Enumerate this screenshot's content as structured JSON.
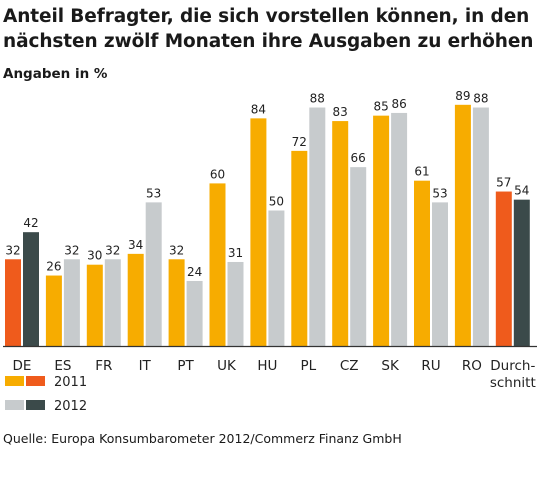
{
  "chart_data": {
    "type": "bar",
    "title": "Anteil Befragter, die sich vorstellen können, in den nächsten zwölf Monaten ihre Ausgaben zu erhöhen",
    "subtitle": "Angaben in %",
    "categories": [
      "DE",
      "ES",
      "FR",
      "IT",
      "PT",
      "UK",
      "HU",
      "PL",
      "CZ",
      "SK",
      "RU",
      "RO",
      "Durch-schnitt"
    ],
    "category_lines": [
      [
        "DE"
      ],
      [
        "ES"
      ],
      [
        "FR"
      ],
      [
        "IT"
      ],
      [
        "PT"
      ],
      [
        "UK"
      ],
      [
        "HU"
      ],
      [
        "PL"
      ],
      [
        "CZ"
      ],
      [
        "SK"
      ],
      [
        "RU"
      ],
      [
        "RO"
      ],
      [
        "Durch-",
        "schnitt"
      ]
    ],
    "series": [
      {
        "name": "2011",
        "values": [
          32,
          26,
          30,
          34,
          32,
          60,
          84,
          72,
          83,
          85,
          61,
          89,
          57
        ]
      },
      {
        "name": "2012",
        "values": [
          42,
          32,
          32,
          53,
          24,
          31,
          50,
          88,
          66,
          86,
          53,
          88,
          54
        ]
      }
    ],
    "ylim": [
      0,
      100
    ],
    "grid": false,
    "legend": "bottom-left",
    "legend_labels": [
      "2011",
      "2012"
    ],
    "source": "Quelle: Europa Konsumbarometer 2012/Commerz Finanz GmbH",
    "colors": {
      "2011": "#f7ac00",
      "2012": "#c7cbcd",
      "highlight_2011": "#ef5b1c",
      "highlight_2012": "#3b4a4a",
      "text": "#222222",
      "axis": "#333333"
    }
  }
}
